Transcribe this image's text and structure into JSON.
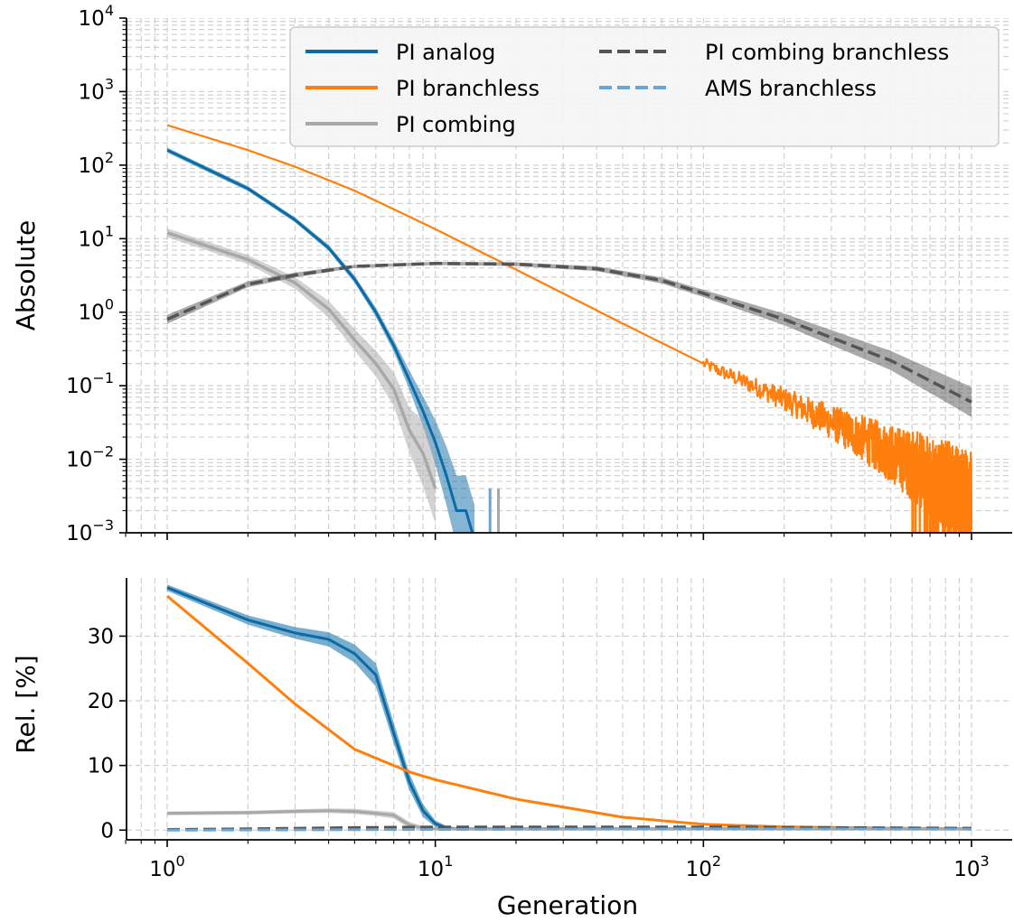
{
  "figure": {
    "xlabel": "Generation",
    "top_ylabel": "Absolute",
    "bottom_ylabel": "Rel. [%]"
  },
  "legend": {
    "placement": "top-right",
    "entries": [
      {
        "label": "PI analog",
        "color": "#0b6ba6",
        "dash": "solid"
      },
      {
        "label": "PI branchless",
        "color": "#ff7f0e",
        "dash": "solid"
      },
      {
        "label": "PI combing",
        "color": "#a8a8a8",
        "dash": "solid"
      },
      {
        "label": "PI combing branchless",
        "color": "#555555",
        "dash": "dashed"
      },
      {
        "label": "AMS branchless",
        "color": "#6aa6d4",
        "dash": "dashed"
      }
    ]
  },
  "chart_data": [
    {
      "type": "line",
      "ylabel": "Absolute",
      "xscale": "log",
      "yscale": "log",
      "xlim": [
        0.7,
        1300
      ],
      "ylim": [
        0.001,
        10000
      ],
      "grid": true,
      "x_ticks": [
        {
          "base": "10",
          "exp": "0"
        },
        {
          "base": "10",
          "exp": "1"
        },
        {
          "base": "10",
          "exp": "2"
        },
        {
          "base": "10",
          "exp": "3"
        }
      ],
      "y_ticks": [
        {
          "value": 10000,
          "base": "10",
          "exp": "4"
        },
        {
          "value": 1000,
          "base": "10",
          "exp": "3"
        },
        {
          "value": 100,
          "base": "10",
          "exp": "2"
        },
        {
          "value": 10,
          "base": "10",
          "exp": "1"
        },
        {
          "value": 1,
          "base": "10",
          "exp": "0"
        },
        {
          "value": 0.1,
          "base": "10",
          "exp": "−1"
        },
        {
          "value": 0.01,
          "base": "10",
          "exp": "−2"
        },
        {
          "value": 0.001,
          "base": "10",
          "exp": "−3"
        }
      ],
      "series": [
        {
          "name": "PI analog",
          "color": "#0b6ba6",
          "x": [
            1,
            2,
            3,
            4,
            5,
            6,
            7,
            8,
            9,
            10,
            11,
            12,
            13,
            14
          ],
          "y": [
            160,
            48,
            18,
            7.5,
            2.8,
            1.0,
            0.35,
            0.12,
            0.045,
            0.017,
            0.006,
            0.002,
            0.002,
            0.0008
          ],
          "band": [
            1.08,
            1.08,
            1.08,
            1.1,
            1.12,
            1.15,
            1.2,
            1.35,
            1.6,
            2.0,
            2.5,
            3.0,
            3.0,
            3.0
          ]
        },
        {
          "name": "PI branchless",
          "color": "#ff7f0e",
          "x": [
            1,
            2,
            3,
            5,
            10,
            20,
            50,
            100,
            200,
            300,
            500,
            700,
            1000
          ],
          "y": [
            350,
            160,
            95,
            45,
            13.5,
            3.8,
            0.7,
            0.2,
            0.065,
            0.032,
            0.012,
            0.006,
            0.003
          ],
          "noisy_from_x": 100
        },
        {
          "name": "PI combing",
          "color": "#a8a8a8",
          "x": [
            1,
            2,
            3,
            4,
            5,
            6,
            7,
            8,
            9,
            10
          ],
          "y": [
            12,
            5.2,
            2.5,
            1.1,
            0.42,
            0.2,
            0.09,
            0.025,
            0.012,
            0.004
          ],
          "band": [
            1.15,
            1.15,
            1.2,
            1.3,
            1.4,
            1.5,
            1.7,
            2.0,
            2.8,
            3.0
          ]
        },
        {
          "name": "PI combing branchless",
          "color": "#555555",
          "x": [
            1,
            2,
            3,
            5,
            10,
            20,
            40,
            70,
            100,
            200,
            500,
            1000
          ],
          "y": [
            0.8,
            2.4,
            3.2,
            4.2,
            4.6,
            4.5,
            3.9,
            2.7,
            1.8,
            0.8,
            0.22,
            0.06
          ],
          "band": [
            1.15,
            1.1,
            1.08,
            1.05,
            1.05,
            1.06,
            1.08,
            1.1,
            1.12,
            1.2,
            1.35,
            1.6
          ]
        },
        {
          "name": "AMS branchless",
          "color": "#6aa6d4",
          "x": [
            16
          ],
          "y": [
            0.004
          ]
        }
      ]
    },
    {
      "type": "line",
      "ylabel": "Rel. [%]",
      "xlabel": "Generation",
      "xscale": "log",
      "yscale": "linear",
      "xlim": [
        0.7,
        1300
      ],
      "ylim": [
        -1.5,
        39
      ],
      "grid": true,
      "x_ticks": [
        {
          "base": "10",
          "exp": "0"
        },
        {
          "base": "10",
          "exp": "1"
        },
        {
          "base": "10",
          "exp": "2"
        },
        {
          "base": "10",
          "exp": "3"
        }
      ],
      "y_ticks": [
        {
          "value": 0,
          "label": "0"
        },
        {
          "value": 10,
          "label": "10"
        },
        {
          "value": 20,
          "label": "20"
        },
        {
          "value": 30,
          "label": "30"
        }
      ],
      "series": [
        {
          "name": "PI analog",
          "color": "#0b6ba6",
          "x": [
            1,
            2,
            3,
            4,
            5,
            6,
            7,
            8,
            9,
            10,
            11,
            12,
            1000
          ],
          "y": [
            37.5,
            32.5,
            30.5,
            29.5,
            27.3,
            24.0,
            15.0,
            7.5,
            3.0,
            1.0,
            0.35,
            0.2,
            0.2
          ],
          "band": [
            0.5,
            0.7,
            0.9,
            1.1,
            1.4,
            1.8,
            1.6,
            1.3,
            1.0,
            0.5,
            0.3,
            0.2,
            0.2
          ]
        },
        {
          "name": "PI branchless",
          "color": "#ff7f0e",
          "x": [
            1,
            2,
            3,
            5,
            8,
            10,
            20,
            50,
            100,
            200,
            500,
            1000
          ],
          "y": [
            36.2,
            25.8,
            19.5,
            12.5,
            9.0,
            7.8,
            4.8,
            2.0,
            0.9,
            0.5,
            0.3,
            0.2
          ]
        },
        {
          "name": "PI combing",
          "color": "#a8a8a8",
          "x": [
            1,
            2,
            3,
            4,
            5,
            6,
            7,
            8,
            9,
            10,
            1000
          ],
          "y": [
            2.6,
            2.7,
            2.9,
            3.0,
            2.9,
            2.6,
            2.3,
            0.8,
            0.3,
            0.2,
            0.2
          ],
          "band": [
            0.3,
            0.3,
            0.3,
            0.35,
            0.4,
            0.4,
            0.5,
            0.5,
            0.3,
            0.2,
            0.2
          ]
        },
        {
          "name": "PI combing branchless",
          "color": "#555555",
          "x": [
            1,
            2,
            5,
            10,
            100,
            1000
          ],
          "y": [
            0.1,
            0.2,
            0.4,
            0.5,
            0.5,
            0.3
          ]
        },
        {
          "name": "AMS branchless",
          "color": "#6aa6d4",
          "x": [
            1,
            10,
            100,
            1000
          ],
          "y": [
            0.0,
            0.1,
            0.2,
            0.15
          ]
        }
      ]
    }
  ]
}
